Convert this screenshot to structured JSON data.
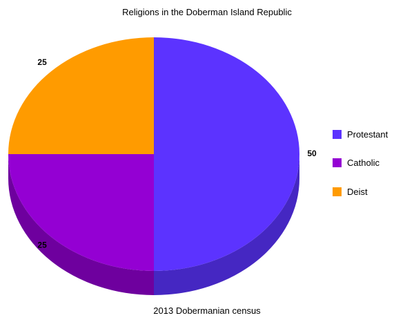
{
  "chart_data": {
    "type": "pie",
    "title": "Religions in the Doberman Island Republic",
    "caption": "2013 Dobermanian census",
    "three_d": true,
    "legend_position": "right",
    "categories": [
      "Protestant",
      "Catholic",
      "Deist"
    ],
    "values": [
      50,
      25,
      25
    ],
    "data_labels": [
      "50",
      "25",
      "25"
    ],
    "colors": [
      "#5c33ff",
      "#9400d3",
      "#ff9b00"
    ],
    "side_colors": [
      "#4527c2",
      "#6e009e",
      "#c47700"
    ]
  }
}
